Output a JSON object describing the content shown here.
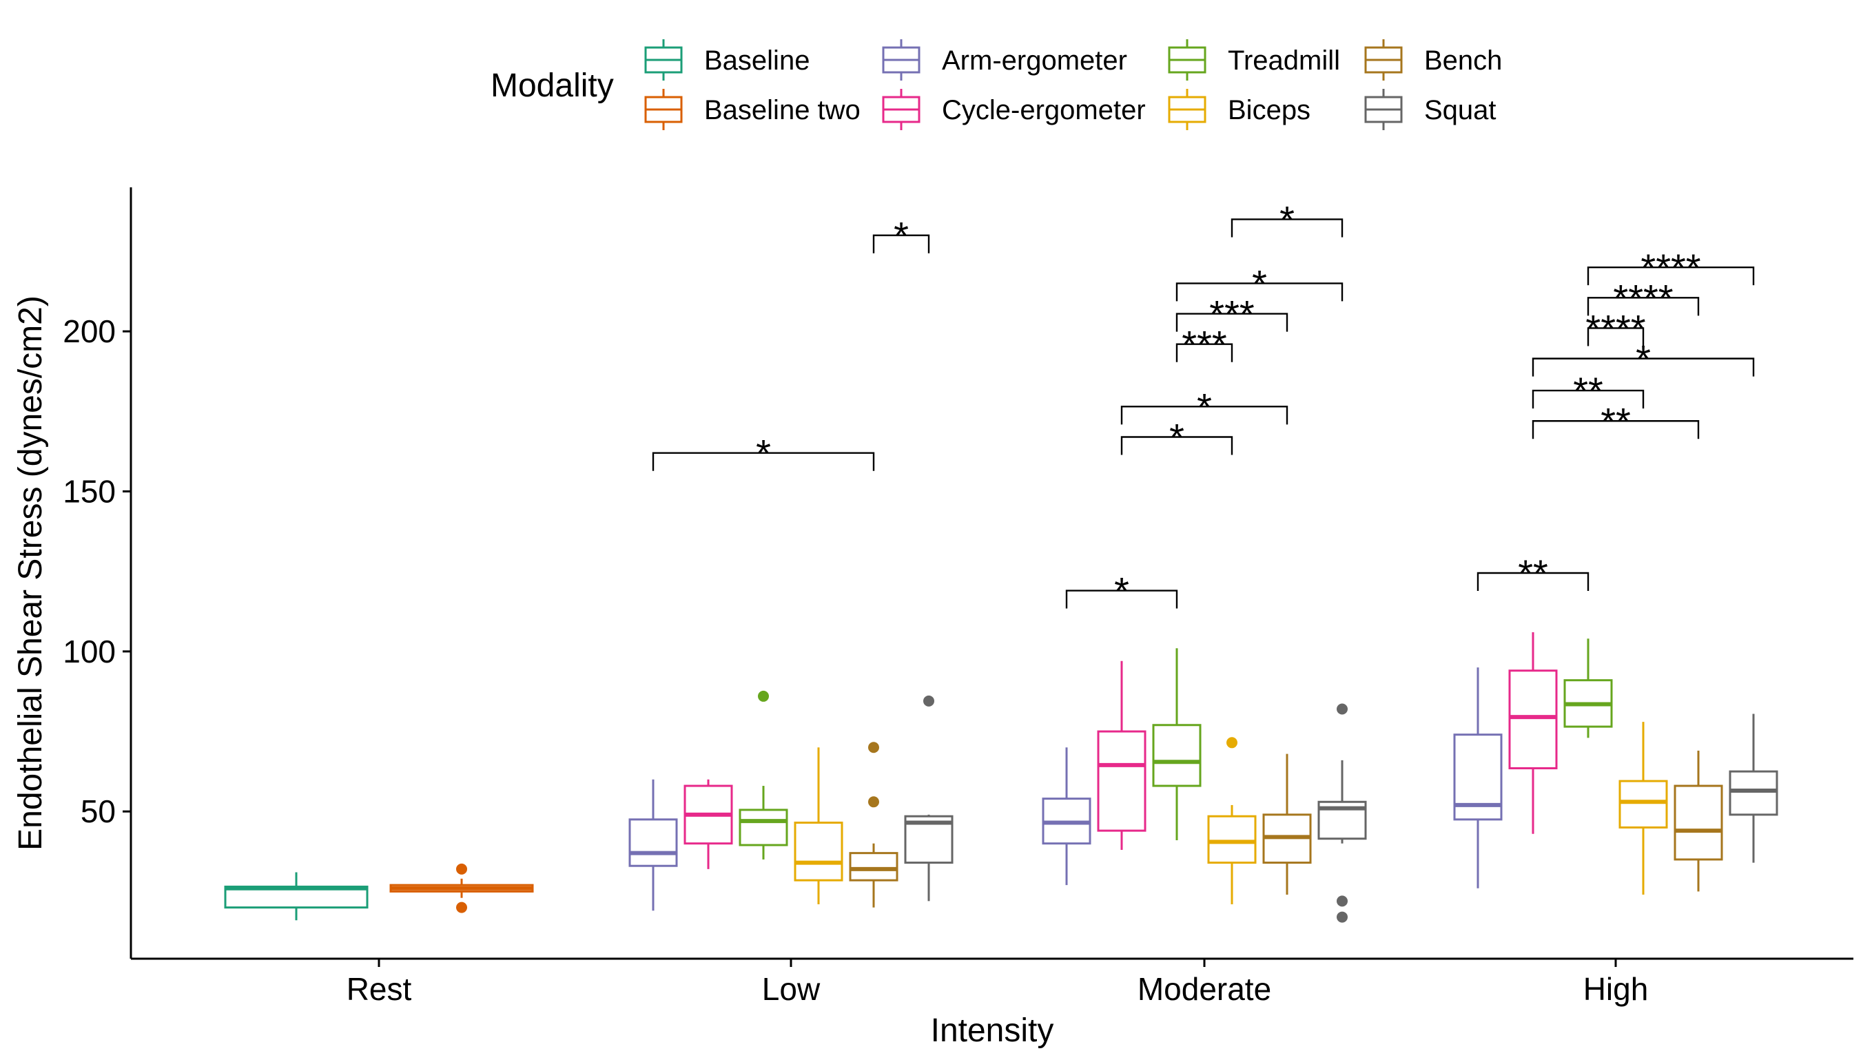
{
  "chart_data": {
    "type": "boxplot",
    "xlabel": "Intensity",
    "ylabel": "Endothelial Shear Stress (dynes/cm2)",
    "ylim": [
      4,
      245
    ],
    "y_ticks": [
      50,
      100,
      150,
      200
    ],
    "legend": {
      "title": "Modality",
      "position": "top"
    },
    "categories": [
      "Rest",
      "Low",
      "Moderate",
      "High"
    ],
    "series": [
      {
        "name": "Baseline",
        "color": "#1B9E77",
        "boxes": [
          {
            "category": "Rest",
            "lower": 16,
            "q1": 20,
            "median": 26,
            "q3": 26.5,
            "upper": 31,
            "outliers": []
          }
        ]
      },
      {
        "name": "Baseline two",
        "color": "#D95F02",
        "boxes": [
          {
            "category": "Rest",
            "lower": 23,
            "q1": 25,
            "median": 26,
            "q3": 27,
            "upper": 29,
            "outliers": [
              32,
              20
            ]
          }
        ]
      },
      {
        "name": "Arm-ergometer",
        "color": "#7570B3",
        "boxes": [
          {
            "category": "Low",
            "lower": 19,
            "q1": 33,
            "median": 37,
            "q3": 47.5,
            "upper": 60,
            "outliers": []
          },
          {
            "category": "Moderate",
            "lower": 27,
            "q1": 40,
            "median": 46.5,
            "q3": 54,
            "upper": 70,
            "outliers": []
          },
          {
            "category": "High",
            "lower": 26,
            "q1": 47.5,
            "median": 52,
            "q3": 74,
            "upper": 95,
            "outliers": []
          }
        ]
      },
      {
        "name": "Cycle-ergometer",
        "color": "#E7298A",
        "boxes": [
          {
            "category": "Low",
            "lower": 32,
            "q1": 40,
            "median": 49,
            "q3": 58,
            "upper": 60,
            "outliers": []
          },
          {
            "category": "Moderate",
            "lower": 38,
            "q1": 44,
            "median": 64.5,
            "q3": 75,
            "upper": 97,
            "outliers": []
          },
          {
            "category": "High",
            "lower": 43,
            "q1": 63.5,
            "median": 79.5,
            "q3": 94,
            "upper": 106,
            "outliers": []
          }
        ]
      },
      {
        "name": "Treadmill",
        "color": "#66A61E",
        "boxes": [
          {
            "category": "Low",
            "lower": 35,
            "q1": 39.5,
            "median": 47,
            "q3": 50.5,
            "upper": 58,
            "outliers": [
              86
            ]
          },
          {
            "category": "Moderate",
            "lower": 41,
            "q1": 58,
            "median": 65.5,
            "q3": 77,
            "upper": 101,
            "outliers": []
          },
          {
            "category": "High",
            "lower": 73,
            "q1": 76.5,
            "median": 83.5,
            "q3": 91,
            "upper": 104,
            "outliers": []
          }
        ]
      },
      {
        "name": "Biceps",
        "color": "#E6AB02",
        "boxes": [
          {
            "category": "Low",
            "lower": 21,
            "q1": 28.5,
            "median": 34,
            "q3": 46.5,
            "upper": 70,
            "outliers": []
          },
          {
            "category": "Moderate",
            "lower": 21,
            "q1": 34,
            "median": 40.5,
            "q3": 48.5,
            "upper": 52,
            "outliers": [
              71.5
            ]
          },
          {
            "category": "High",
            "lower": 24,
            "q1": 45,
            "median": 53,
            "q3": 59.5,
            "upper": 78,
            "outliers": []
          }
        ]
      },
      {
        "name": "Bench",
        "color": "#A6761D",
        "boxes": [
          {
            "category": "Low",
            "lower": 20,
            "q1": 28.5,
            "median": 32,
            "q3": 37,
            "upper": 40,
            "outliers": [
              70,
              53
            ]
          },
          {
            "category": "Moderate",
            "lower": 24,
            "q1": 34,
            "median": 42,
            "q3": 49,
            "upper": 68,
            "outliers": []
          },
          {
            "category": "High",
            "lower": 25,
            "q1": 35,
            "median": 44,
            "q3": 58,
            "upper": 69,
            "outliers": []
          }
        ]
      },
      {
        "name": "Squat",
        "color": "#666666",
        "boxes": [
          {
            "category": "Low",
            "lower": 22,
            "q1": 34,
            "median": 46.5,
            "q3": 48.5,
            "upper": 49,
            "outliers": [
              84.5
            ]
          },
          {
            "category": "Moderate",
            "lower": 40,
            "q1": 41.5,
            "median": 51,
            "q3": 53,
            "upper": 66,
            "outliers": [
              82,
              22,
              17
            ]
          },
          {
            "category": "High",
            "lower": 34,
            "q1": 49,
            "median": 56.5,
            "q3": 62.5,
            "upper": 80.5,
            "outliers": []
          }
        ]
      }
    ],
    "significance": [
      {
        "category": "Low",
        "from": "Arm-ergometer",
        "to": "Bench",
        "y": 162,
        "label": "*"
      },
      {
        "category": "Low",
        "from": "Bench",
        "to": "Squat",
        "y": 230,
        "label": "*"
      },
      {
        "category": "Moderate",
        "from": "Arm-ergometer",
        "to": "Treadmill",
        "y": 119,
        "label": "*"
      },
      {
        "category": "Moderate",
        "from": "Cycle-ergometer",
        "to": "Biceps",
        "y": 167,
        "label": "*"
      },
      {
        "category": "Moderate",
        "from": "Cycle-ergometer",
        "to": "Bench",
        "y": 176.5,
        "label": "*"
      },
      {
        "category": "Moderate",
        "from": "Treadmill",
        "to": "Biceps",
        "y": 196,
        "label": "***"
      },
      {
        "category": "Moderate",
        "from": "Treadmill",
        "to": "Bench",
        "y": 205.5,
        "label": "***"
      },
      {
        "category": "Moderate",
        "from": "Treadmill",
        "to": "Squat",
        "y": 215,
        "label": "*"
      },
      {
        "category": "Moderate",
        "from": "Biceps",
        "to": "Squat",
        "y": 235,
        "label": "*"
      },
      {
        "category": "High",
        "from": "Arm-ergometer",
        "to": "Treadmill",
        "y": 124.5,
        "label": "**"
      },
      {
        "category": "High",
        "from": "Cycle-ergometer",
        "to": "Bench",
        "y": 172,
        "label": "**"
      },
      {
        "category": "High",
        "from": "Cycle-ergometer",
        "to": "Biceps",
        "y": 181.5,
        "label": "**"
      },
      {
        "category": "High",
        "from": "Cycle-ergometer",
        "to": "Squat",
        "y": 191.5,
        "label": "*"
      },
      {
        "category": "High",
        "from": "Treadmill",
        "to": "Biceps",
        "y": 201,
        "label": "****"
      },
      {
        "category": "High",
        "from": "Treadmill",
        "to": "Bench",
        "y": 210.5,
        "label": "****"
      },
      {
        "category": "High",
        "from": "Treadmill",
        "to": "Squat",
        "y": 220,
        "label": "****"
      }
    ]
  }
}
